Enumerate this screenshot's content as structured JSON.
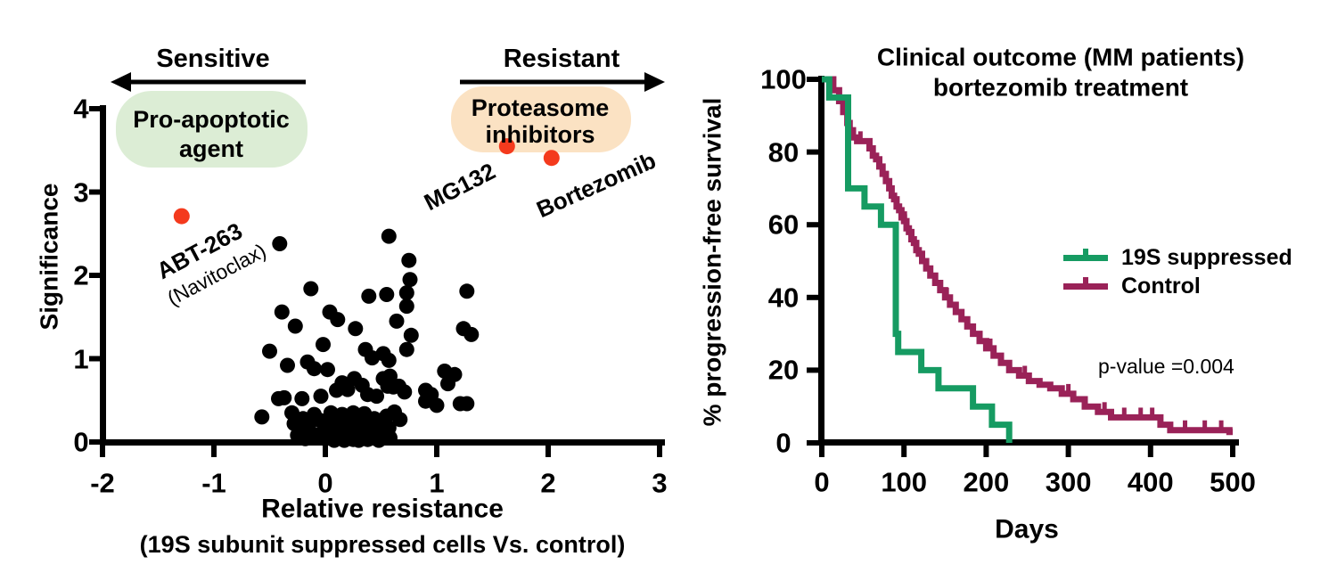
{
  "figure_bg": "#ffffff",
  "chart_data": [
    {
      "type": "scatter",
      "panel": "left",
      "xlabel": "Relative resistance",
      "xlabel_sub": "(19S subunit suppressed cells Vs. control)",
      "ylabel": "Significance",
      "xlim": [
        -2,
        3
      ],
      "ylim": [
        0,
        4
      ],
      "xticks": [
        -2,
        -1,
        0,
        1,
        2,
        3
      ],
      "yticks": [
        0,
        1,
        2,
        3,
        4
      ],
      "grid": false,
      "point_color": "#000000",
      "highlight_color": "#f43a1d",
      "annotations": {
        "direction_left": {
          "label": "Sensitive",
          "arrow": "left"
        },
        "direction_right": {
          "label": "Resistant",
          "arrow": "right"
        },
        "bubble_green": {
          "line1": "Pro-apoptotic",
          "line2": "agent",
          "color": "#dcedd5"
        },
        "bubble_orange": {
          "line1": "Proteasome",
          "line2": "inhibitors",
          "color": "#fbe2c3"
        }
      },
      "highlight_points": [
        {
          "label": "ABT-263",
          "sublabel": "(Navitoclax)",
          "x": -1.29,
          "y": 2.71
        },
        {
          "label": "MG132",
          "x": 1.63,
          "y": 3.55
        },
        {
          "label": "Bortezomib",
          "x": 2.03,
          "y": 3.41
        }
      ],
      "points": [
        [
          -0.41,
          2.38
        ],
        [
          0.57,
          2.47
        ],
        [
          0.75,
          2.18
        ],
        [
          0.76,
          1.95
        ],
        [
          -0.13,
          1.84
        ],
        [
          0.39,
          1.75
        ],
        [
          0.55,
          1.77
        ],
        [
          0.73,
          1.79
        ],
        [
          1.27,
          1.81
        ],
        [
          0.73,
          1.63
        ],
        [
          -0.39,
          1.56
        ],
        [
          0.04,
          1.56
        ],
        [
          0.11,
          1.47
        ],
        [
          0.64,
          1.45
        ],
        [
          -0.27,
          1.39
        ],
        [
          0.27,
          1.36
        ],
        [
          1.24,
          1.36
        ],
        [
          0.77,
          1.28
        ],
        [
          1.31,
          1.29
        ],
        [
          -0.5,
          1.09
        ],
        [
          -0.02,
          1.17
        ],
        [
          0.36,
          1.11
        ],
        [
          0.73,
          1.11
        ],
        [
          0.42,
          1.01
        ],
        [
          0.52,
          1.06
        ],
        [
          0.57,
          0.98
        ],
        [
          -0.34,
          0.92
        ],
        [
          -0.16,
          0.96
        ],
        [
          -0.1,
          0.88
        ],
        [
          0.02,
          0.87
        ],
        [
          1.16,
          0.81
        ],
        [
          1.1,
          0.7
        ],
        [
          1.07,
          0.85
        ],
        [
          0.15,
          0.71
        ],
        [
          0.26,
          0.76
        ],
        [
          0.33,
          0.68
        ],
        [
          0.52,
          0.76
        ],
        [
          0.56,
          0.67
        ],
        [
          0.66,
          0.67
        ],
        [
          0.58,
          0.79
        ],
        [
          0.61,
          0.66
        ],
        [
          0.71,
          0.6
        ],
        [
          0.9,
          0.62
        ],
        [
          0.95,
          0.57
        ],
        [
          -0.42,
          0.52
        ],
        [
          -0.37,
          0.53
        ],
        [
          -0.21,
          0.52
        ],
        [
          -0.04,
          0.55
        ],
        [
          0.1,
          0.62
        ],
        [
          0.2,
          0.63
        ],
        [
          0.38,
          0.57
        ],
        [
          0.46,
          0.55
        ],
        [
          0.9,
          0.49
        ],
        [
          1.0,
          0.44
        ],
        [
          1.21,
          0.46
        ],
        [
          1.27,
          0.46
        ],
        [
          0.62,
          0.36
        ],
        [
          -0.57,
          0.3
        ],
        [
          -0.3,
          0.35
        ],
        [
          -0.24,
          0.17
        ],
        [
          0.67,
          0.27
        ],
        [
          0.57,
          0.17
        ],
        [
          -0.28,
          0.22
        ],
        [
          -0.25,
          0.08
        ],
        [
          -0.2,
          0.28
        ],
        [
          -0.18,
          0.04
        ],
        [
          -0.15,
          0.22
        ],
        [
          -0.12,
          0.1
        ],
        [
          -0.1,
          0.33
        ],
        [
          -0.08,
          0.05
        ],
        [
          -0.05,
          0.26
        ],
        [
          -0.02,
          0.12
        ],
        [
          0.0,
          0.04
        ],
        [
          0.02,
          0.2
        ],
        [
          0.05,
          0.08
        ],
        [
          0.05,
          0.35
        ],
        [
          0.07,
          0.3
        ],
        [
          0.08,
          0.02
        ],
        [
          0.1,
          0.14
        ],
        [
          0.12,
          0.05
        ],
        [
          0.13,
          0.24
        ],
        [
          0.15,
          0.1
        ],
        [
          0.15,
          0.33
        ],
        [
          0.17,
          0.02
        ],
        [
          0.18,
          0.17
        ],
        [
          0.2,
          0.07
        ],
        [
          0.22,
          0.28
        ],
        [
          0.23,
          0.13
        ],
        [
          0.25,
          0.03
        ],
        [
          0.25,
          0.35
        ],
        [
          0.27,
          0.21
        ],
        [
          0.28,
          0.09
        ],
        [
          0.3,
          0.02
        ],
        [
          0.32,
          0.16
        ],
        [
          0.33,
          0.06
        ],
        [
          0.35,
          0.25
        ],
        [
          0.35,
          0.34
        ],
        [
          0.37,
          0.11
        ],
        [
          0.38,
          0.03
        ],
        [
          0.4,
          0.19
        ],
        [
          0.42,
          0.08
        ],
        [
          0.44,
          0.28
        ],
        [
          0.45,
          0.14
        ],
        [
          0.47,
          0.05
        ],
        [
          0.48,
          0.02
        ],
        [
          0.5,
          0.22
        ],
        [
          0.52,
          0.1
        ],
        [
          0.55,
          0.31
        ],
        [
          0.58,
          0.05
        ]
      ]
    },
    {
      "type": "line",
      "panel": "right",
      "title_lines": [
        "Clinical outcome (MM patients)",
        "bortezomib treatment"
      ],
      "xlabel": "Days",
      "ylabel": "% progression-free survival",
      "xlim": [
        0,
        500
      ],
      "ylim": [
        0,
        100
      ],
      "xticks": [
        0,
        100,
        200,
        300,
        400,
        500
      ],
      "yticks": [
        0,
        20,
        40,
        60,
        80,
        100
      ],
      "grid": false,
      "legend_position": "right-center",
      "annotation": "p-value =0.004",
      "series": [
        {
          "name": "19S suppressed",
          "color": "#169b62",
          "points": [
            [
              0,
              100
            ],
            [
              9,
              100
            ],
            [
              9,
              95
            ],
            [
              32,
              95
            ],
            [
              32,
              70
            ],
            [
              52,
              70
            ],
            [
              52,
              65
            ],
            [
              72,
              65
            ],
            [
              72,
              60
            ],
            [
              90,
              60
            ],
            [
              90,
              30
            ],
            [
              93,
              30
            ],
            [
              93,
              25
            ],
            [
              121,
              25
            ],
            [
              121,
              20
            ],
            [
              142,
              20
            ],
            [
              142,
              15
            ],
            [
              184,
              15
            ],
            [
              184,
              10
            ],
            [
              207,
              10
            ],
            [
              207,
              5
            ],
            [
              228,
              5
            ],
            [
              228,
              0
            ]
          ],
          "censor_marks": []
        },
        {
          "name": "Control",
          "color": "#9a2258",
          "points": [
            [
              0,
              100
            ],
            [
              14,
              100
            ],
            [
              14,
              97
            ],
            [
              21,
              97
            ],
            [
              21,
              94
            ],
            [
              26,
              94
            ],
            [
              26,
              91
            ],
            [
              31,
              91
            ],
            [
              31,
              88
            ],
            [
              34,
              88
            ],
            [
              34,
              86
            ],
            [
              38,
              86
            ],
            [
              38,
              84
            ],
            [
              43,
              84
            ],
            [
              43,
              83
            ],
            [
              58,
              83
            ],
            [
              58,
              81
            ],
            [
              62,
              81
            ],
            [
              62,
              79
            ],
            [
              66,
              79
            ],
            [
              66,
              78
            ],
            [
              70,
              78
            ],
            [
              70,
              76
            ],
            [
              74,
              76
            ],
            [
              74,
              74
            ],
            [
              78,
              74
            ],
            [
              78,
              72
            ],
            [
              82,
              72
            ],
            [
              82,
              70
            ],
            [
              85,
              70
            ],
            [
              85,
              68
            ],
            [
              88,
              68
            ],
            [
              88,
              67
            ],
            [
              91,
              67
            ],
            [
              91,
              65
            ],
            [
              94,
              65
            ],
            [
              94,
              64
            ],
            [
              97,
              64
            ],
            [
              97,
              62
            ],
            [
              100,
              62
            ],
            [
              100,
              61
            ],
            [
              103,
              61
            ],
            [
              103,
              59
            ],
            [
              106,
              59
            ],
            [
              106,
              58
            ],
            [
              109,
              58
            ],
            [
              109,
              56
            ],
            [
              112,
              56
            ],
            [
              112,
              55
            ],
            [
              115,
              55
            ],
            [
              115,
              53
            ],
            [
              118,
              53
            ],
            [
              118,
              52
            ],
            [
              122,
              52
            ],
            [
              122,
              50
            ],
            [
              127,
              50
            ],
            [
              127,
              48
            ],
            [
              132,
              48
            ],
            [
              132,
              46
            ],
            [
              138,
              46
            ],
            [
              138,
              44
            ],
            [
              144,
              44
            ],
            [
              144,
              42
            ],
            [
              150,
              42
            ],
            [
              150,
              40
            ],
            [
              156,
              40
            ],
            [
              156,
              38
            ],
            [
              163,
              38
            ],
            [
              163,
              36
            ],
            [
              170,
              36
            ],
            [
              170,
              34
            ],
            [
              177,
              34
            ],
            [
              177,
              32
            ],
            [
              184,
              32
            ],
            [
              184,
              30
            ],
            [
              192,
              30
            ],
            [
              192,
              28
            ],
            [
              200,
              28
            ],
            [
              200,
              26
            ],
            [
              209,
              26
            ],
            [
              209,
              24
            ],
            [
              218,
              24
            ],
            [
              218,
              22
            ],
            [
              228,
              22
            ],
            [
              228,
              20
            ],
            [
              240,
              20
            ],
            [
              240,
              18.5
            ],
            [
              252,
              18.5
            ],
            [
              252,
              17
            ],
            [
              265,
              17
            ],
            [
              265,
              16
            ],
            [
              278,
              16
            ],
            [
              278,
              15
            ],
            [
              292,
              15
            ],
            [
              292,
              13.5
            ],
            [
              306,
              13.5
            ],
            [
              306,
              12
            ],
            [
              320,
              12
            ],
            [
              320,
              10
            ],
            [
              336,
              10
            ],
            [
              336,
              8.5
            ],
            [
              352,
              8.5
            ],
            [
              352,
              7
            ],
            [
              412,
              7
            ],
            [
              412,
              5
            ],
            [
              424,
              5
            ],
            [
              424,
              3.5
            ],
            [
              496,
              3.5
            ],
            [
              496,
              3
            ],
            [
              500,
              3
            ]
          ],
          "censor_marks": [
            [
              47,
              83
            ],
            [
              101,
              61
            ],
            [
              152,
              40
            ],
            [
              205,
              26
            ],
            [
              247,
              18.5
            ],
            [
              300,
              13.5
            ],
            [
              344,
              8.5
            ],
            [
              368,
              7
            ],
            [
              388,
              7
            ],
            [
              402,
              7
            ],
            [
              442,
              3.5
            ],
            [
              466,
              3.5
            ],
            [
              486,
              3.5
            ]
          ]
        }
      ]
    }
  ]
}
